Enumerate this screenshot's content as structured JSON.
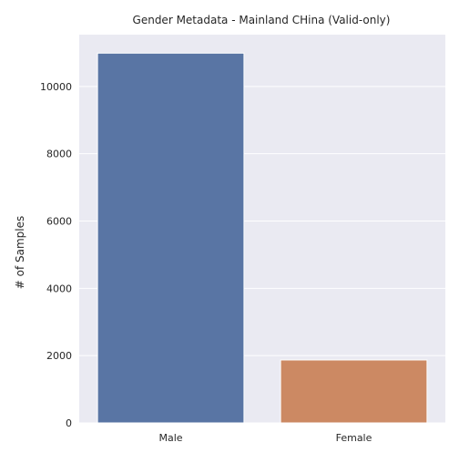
{
  "chart_data": {
    "type": "bar",
    "title": "Gender Metadata - Mainland CHina (Valid-only)",
    "xlabel": "",
    "ylabel": "# of Samples",
    "categories": [
      "Male",
      "Female"
    ],
    "values": [
      10990,
      1870
    ],
    "ylim": [
      0,
      11540
    ],
    "yticks": [
      0,
      2000,
      4000,
      6000,
      8000,
      10000
    ],
    "grid": true,
    "legend": "none",
    "colors": {
      "background": "#eaeaf2",
      "grid": "#ffffff",
      "bars": [
        "#5975a4",
        "#cc8963"
      ]
    }
  }
}
